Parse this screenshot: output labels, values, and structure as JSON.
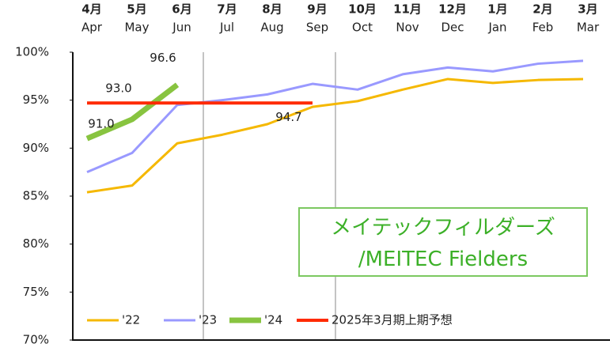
{
  "chart_data": {
    "type": "line",
    "categories": [
      "Apr",
      "May",
      "Jun",
      "Jul",
      "Aug",
      "Sep",
      "Oct",
      "Nov",
      "Dec",
      "Jan",
      "Feb",
      "Mar"
    ],
    "categories_jp": [
      "4月",
      "5月",
      "6月",
      "7月",
      "8月",
      "9月",
      "10月",
      "11月",
      "12月",
      "1月",
      "2月",
      "3月"
    ],
    "ylim": [
      70,
      100
    ],
    "yticks": [
      {
        "value": 70,
        "label": "70%"
      },
      {
        "value": 75,
        "label": "75%"
      },
      {
        "value": 80,
        "label": "80%"
      },
      {
        "value": 85,
        "label": "85%"
      },
      {
        "value": 90,
        "label": "90%"
      },
      {
        "value": 95,
        "label": "95%"
      },
      {
        "value": 100,
        "label": "100%"
      }
    ],
    "series": [
      {
        "name": "'22",
        "color": "#f5b800",
        "width": 3,
        "values": [
          85.4,
          86.1,
          90.5,
          91.4,
          92.5,
          94.3,
          94.9,
          96.1,
          97.2,
          96.8,
          97.1,
          97.2
        ]
      },
      {
        "name": "'23",
        "color": "#9999ff",
        "width": 3,
        "values": [
          87.5,
          89.5,
          94.5,
          95.0,
          95.6,
          96.7,
          96.1,
          97.7,
          98.4,
          98.0,
          98.8,
          99.1
        ]
      },
      {
        "name": "'24",
        "color": "#88c440",
        "width": 7,
        "values": [
          91.0,
          93.0,
          96.6,
          null,
          null,
          null,
          null,
          null,
          null,
          null,
          null,
          null
        ],
        "value_labels": [
          "91.0",
          "93.0",
          "96.6",
          null,
          null,
          null,
          null,
          null,
          null,
          null,
          null,
          null
        ]
      },
      {
        "name": "2025年3月期上期予想",
        "color": "#ff2a00",
        "width": 4,
        "values": [
          94.7,
          94.7,
          94.7,
          94.7,
          94.7,
          94.7,
          null,
          null,
          null,
          null,
          null,
          null
        ],
        "value_labels": [
          null,
          null,
          null,
          null,
          null,
          "94.7",
          null,
          null,
          null,
          null,
          null,
          null
        ]
      }
    ],
    "annotation": [
      "メイテックフィルダーズ",
      "/MEITEC Fielders"
    ]
  }
}
